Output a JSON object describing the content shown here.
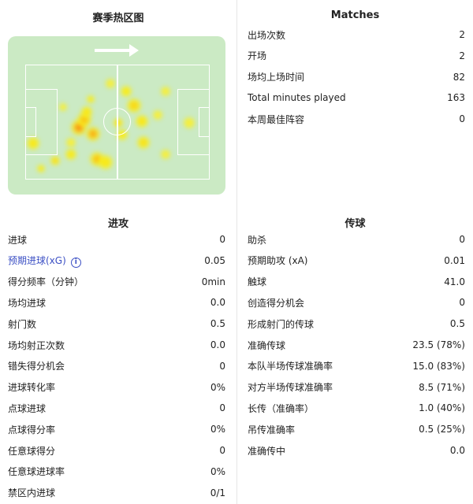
{
  "heatmap": {
    "title": "赛季热区图",
    "direction_icon": "arrow-right-icon"
  },
  "matches": {
    "title": "Matches",
    "rows": [
      {
        "label": "出场次数",
        "value": "2"
      },
      {
        "label": "开场",
        "value": "2"
      },
      {
        "label": "场均上场时间",
        "value": "82"
      },
      {
        "label": "Total minutes played",
        "value": "163"
      },
      {
        "label": "本周最佳阵容",
        "value": "0"
      }
    ]
  },
  "attack": {
    "title": "进攻",
    "rows": [
      {
        "label": "进球",
        "value": "0"
      },
      {
        "label": "预期进球(xG)",
        "value": "0.05",
        "highlight": true
      },
      {
        "label": "得分频率（分钟）",
        "value": "0min"
      },
      {
        "label": "场均进球",
        "value": "0.0"
      },
      {
        "label": "射门数",
        "value": "0.5"
      },
      {
        "label": "场均射正次数",
        "value": "0.0"
      },
      {
        "label": "错失得分机会",
        "value": "0"
      },
      {
        "label": "进球转化率",
        "value": "0%"
      },
      {
        "label": "点球进球",
        "value": "0"
      },
      {
        "label": "点球得分率",
        "value": "0%"
      },
      {
        "label": "任意球得分",
        "value": "0"
      },
      {
        "label": "任意球进球率",
        "value": "0%"
      },
      {
        "label": "禁区内进球",
        "value": "0/1"
      }
    ]
  },
  "passing": {
    "title": "传球",
    "rows": [
      {
        "label": "助杀",
        "value": "0"
      },
      {
        "label": "预期助攻 (xA)",
        "value": "0.01"
      },
      {
        "label": "触球",
        "value": "41.0"
      },
      {
        "label": "创造得分机会",
        "value": "0"
      },
      {
        "label": "形成射门的传球",
        "value": "0.5"
      },
      {
        "label": "准确传球",
        "value": "23.5 (78%)"
      },
      {
        "label": "本队半场传球准确率",
        "value": "15.0 (83%)"
      },
      {
        "label": "对方半场传球准确率",
        "value": "8.5 (71%)"
      },
      {
        "label": "长传（准确率）",
        "value": "1.0 (40%)"
      },
      {
        "label": "吊传准确率",
        "value": "0.5 (25%)"
      },
      {
        "label": "准确传中",
        "value": "0.0"
      }
    ]
  },
  "colors": {
    "pitch": "#cbeac4",
    "link": "#3b4fc4"
  }
}
